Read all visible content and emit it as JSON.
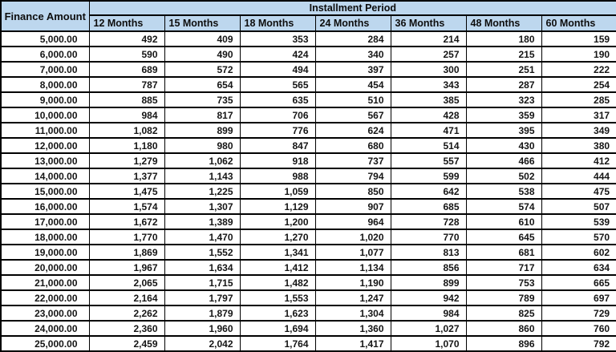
{
  "table": {
    "corner_header": "Finance Amount",
    "group_header": "Installment Period",
    "column_headers": [
      "12 Months",
      "15 Months",
      "18 Months",
      "24 Months",
      "36 Months",
      "48 Months",
      "60 Months"
    ],
    "rows": [
      {
        "amount": "5,000.00",
        "values": [
          "492",
          "409",
          "353",
          "284",
          "214",
          "180",
          "159"
        ]
      },
      {
        "amount": "6,000.00",
        "values": [
          "590",
          "490",
          "424",
          "340",
          "257",
          "215",
          "190"
        ]
      },
      {
        "amount": "7,000.00",
        "values": [
          "689",
          "572",
          "494",
          "397",
          "300",
          "251",
          "222"
        ]
      },
      {
        "amount": "8,000.00",
        "values": [
          "787",
          "654",
          "565",
          "454",
          "343",
          "287",
          "254"
        ]
      },
      {
        "amount": "9,000.00",
        "values": [
          "885",
          "735",
          "635",
          "510",
          "385",
          "323",
          "285"
        ]
      },
      {
        "amount": "10,000.00",
        "values": [
          "984",
          "817",
          "706",
          "567",
          "428",
          "359",
          "317"
        ]
      },
      {
        "amount": "11,000.00",
        "values": [
          "1,082",
          "899",
          "776",
          "624",
          "471",
          "395",
          "349"
        ]
      },
      {
        "amount": "12,000.00",
        "values": [
          "1,180",
          "980",
          "847",
          "680",
          "514",
          "430",
          "380"
        ]
      },
      {
        "amount": "13,000.00",
        "values": [
          "1,279",
          "1,062",
          "918",
          "737",
          "557",
          "466",
          "412"
        ]
      },
      {
        "amount": "14,000.00",
        "values": [
          "1,377",
          "1,143",
          "988",
          "794",
          "599",
          "502",
          "444"
        ]
      },
      {
        "amount": "15,000.00",
        "values": [
          "1,475",
          "1,225",
          "1,059",
          "850",
          "642",
          "538",
          "475"
        ]
      },
      {
        "amount": "16,000.00",
        "values": [
          "1,574",
          "1,307",
          "1,129",
          "907",
          "685",
          "574",
          "507"
        ]
      },
      {
        "amount": "17,000.00",
        "values": [
          "1,672",
          "1,389",
          "1,200",
          "964",
          "728",
          "610",
          "539"
        ]
      },
      {
        "amount": "18,000.00",
        "values": [
          "1,770",
          "1,470",
          "1,270",
          "1,020",
          "770",
          "645",
          "570"
        ]
      },
      {
        "amount": "19,000.00",
        "values": [
          "1,869",
          "1,552",
          "1,341",
          "1,077",
          "813",
          "681",
          "602"
        ]
      },
      {
        "amount": "20,000.00",
        "values": [
          "1,967",
          "1,634",
          "1,412",
          "1,134",
          "856",
          "717",
          "634"
        ]
      },
      {
        "amount": "21,000.00",
        "values": [
          "2,065",
          "1,715",
          "1,482",
          "1,190",
          "899",
          "753",
          "665"
        ]
      },
      {
        "amount": "22,000.00",
        "values": [
          "2,164",
          "1,797",
          "1,553",
          "1,247",
          "942",
          "789",
          "697"
        ]
      },
      {
        "amount": "23,000.00",
        "values": [
          "2,262",
          "1,879",
          "1,623",
          "1,304",
          "984",
          "825",
          "729"
        ]
      },
      {
        "amount": "24,000.00",
        "values": [
          "2,360",
          "1,960",
          "1,694",
          "1,360",
          "1,027",
          "860",
          "760"
        ]
      },
      {
        "amount": "25,000.00",
        "values": [
          "2,459",
          "2,042",
          "1,764",
          "1,417",
          "1,070",
          "896",
          "792"
        ]
      }
    ],
    "colors": {
      "header_bg": "#bdd7ee",
      "border": "#000000",
      "row_bg": "#ffffff",
      "text": "#151515"
    }
  }
}
